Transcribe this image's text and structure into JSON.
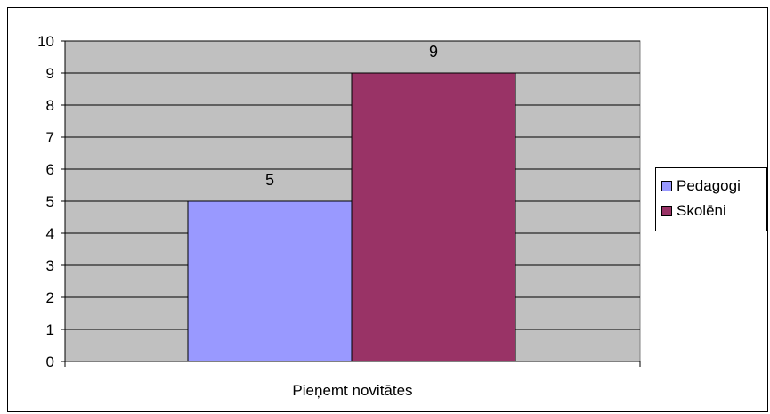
{
  "chart_data": {
    "type": "bar",
    "categories": [
      "Pieņemt novitātes"
    ],
    "series": [
      {
        "name": "Pedagogi",
        "values": [
          5
        ],
        "color": "#9999ff"
      },
      {
        "name": "Skolēni",
        "values": [
          9
        ],
        "color": "#993366"
      }
    ],
    "ylim": [
      0,
      10
    ],
    "yticks": [
      "0",
      "1",
      "2",
      "3",
      "4",
      "5",
      "6",
      "7",
      "8",
      "9",
      "10"
    ],
    "data_labels": [
      "5",
      "9"
    ],
    "grid": true,
    "plot_background": "#c0c0c0",
    "legend_position": "right"
  }
}
